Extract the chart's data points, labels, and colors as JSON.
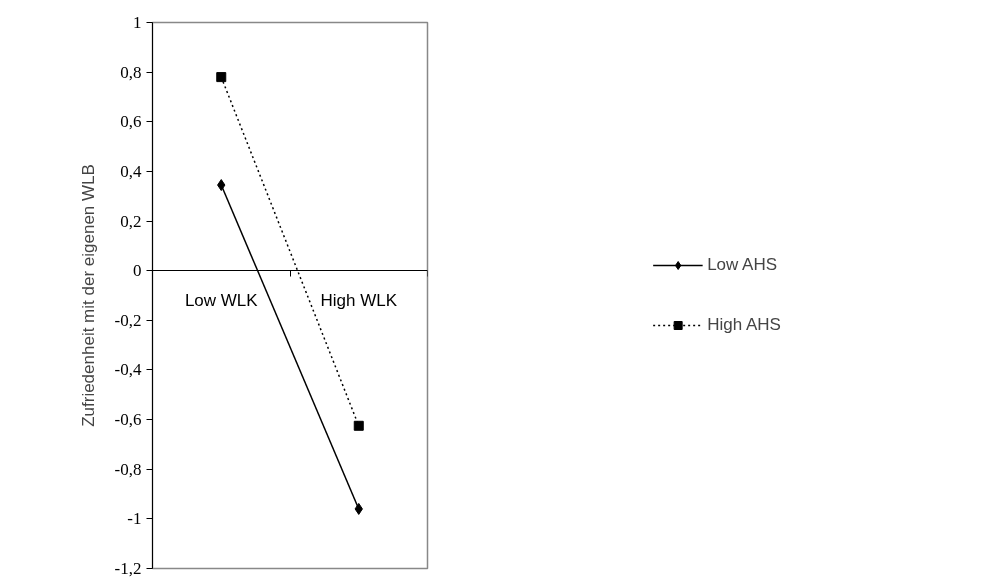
{
  "chart_data": {
    "type": "line",
    "ylabel": "Zufriedenheit mit der eigenen WLB",
    "categories": [
      "Low WLK",
      "High WLK"
    ],
    "series": [
      {
        "name": "Low AHS",
        "color": "#000000",
        "values": [
          0.345,
          -0.96
        ],
        "marker": "diamond",
        "line_style": "solid"
      },
      {
        "name": "High AHS",
        "color": "#000000",
        "values": [
          0.78,
          -0.625
        ],
        "marker": "square",
        "line_style": "dotted"
      }
    ],
    "ylim": [
      -1.2,
      1
    ],
    "yticks": [
      {
        "value": 1,
        "label": "1"
      },
      {
        "value": 0.8,
        "label": "0,8"
      },
      {
        "value": 0.6,
        "label": "0,6"
      },
      {
        "value": 0.4,
        "label": "0,4"
      },
      {
        "value": 0.2,
        "label": "0,2"
      },
      {
        "value": 0,
        "label": "0"
      },
      {
        "value": -0.2,
        "label": "-0,2"
      },
      {
        "value": -0.4,
        "label": "-0,4"
      },
      {
        "value": -0.6,
        "label": "-0,6"
      },
      {
        "value": -0.8,
        "label": "-0,8"
      },
      {
        "value": -1,
        "label": "-1"
      },
      {
        "value": -1.2,
        "label": "-1,2"
      }
    ],
    "grid": false,
    "legend": "right"
  }
}
